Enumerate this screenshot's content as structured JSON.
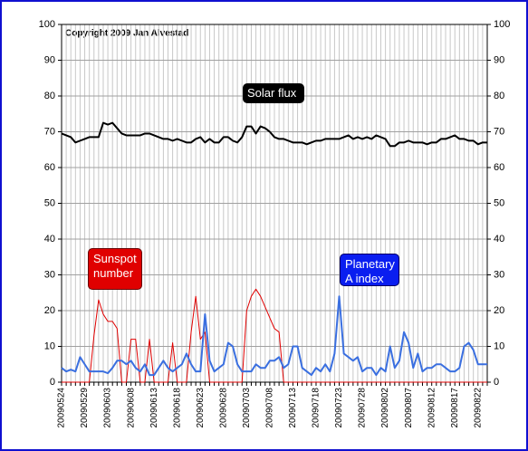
{
  "chart_data": {
    "type": "line",
    "annotations": {
      "copyright": "Copyright 2009 Jan Alvestad"
    },
    "categories": [
      "20090524",
      null,
      null,
      null,
      null,
      "20090529",
      null,
      null,
      null,
      null,
      "20090603",
      null,
      null,
      null,
      null,
      "20090608",
      null,
      null,
      null,
      null,
      "20090613",
      null,
      null,
      null,
      null,
      "20090618",
      null,
      null,
      null,
      null,
      "20090623",
      null,
      null,
      null,
      null,
      "20090628",
      null,
      null,
      null,
      null,
      "20090703",
      null,
      null,
      null,
      null,
      "20090708",
      null,
      null,
      null,
      null,
      "20090713",
      null,
      null,
      null,
      null,
      "20090718",
      null,
      null,
      null,
      null,
      "20090723",
      null,
      null,
      null,
      null,
      "20090728",
      null,
      null,
      null,
      null,
      "20090802",
      null,
      null,
      null,
      null,
      "20090807",
      null,
      null,
      null,
      null,
      "20090812",
      null,
      null,
      null,
      null,
      "20090817",
      null,
      null,
      null,
      null,
      "20090822",
      null,
      null
    ],
    "series": [
      {
        "name": "Solar flux",
        "color": "#000000",
        "values": [
          69.5,
          69,
          68.5,
          67,
          67.5,
          68,
          68.5,
          68.5,
          68.5,
          72.5,
          72,
          72.5,
          71,
          69.5,
          69,
          69,
          69,
          69,
          69.5,
          69.5,
          69,
          68.5,
          68,
          68,
          67.5,
          68,
          67.5,
          67,
          67,
          68,
          68.5,
          67,
          68,
          67,
          67,
          68.5,
          68.5,
          67.5,
          67,
          68.5,
          71.5,
          71.5,
          69.5,
          71.5,
          71,
          70,
          68.5,
          68,
          68,
          67.5,
          67,
          67,
          67,
          66.5,
          67,
          67.5,
          67.5,
          68,
          68,
          68,
          68,
          68.5,
          69,
          68,
          68.5,
          68,
          68.5,
          68,
          69,
          68.5,
          68,
          66,
          66,
          67,
          67,
          67.5,
          67,
          67,
          67,
          66.5,
          67,
          67,
          68,
          68,
          68.5,
          69,
          68,
          68,
          67.5,
          67.5,
          66.5,
          67,
          67
        ]
      },
      {
        "name": "Sunspot number",
        "color": "#e00000",
        "values": [
          0,
          0,
          0,
          0,
          0,
          0,
          0,
          13,
          23,
          19,
          17,
          17,
          15,
          0,
          0,
          12,
          12,
          0,
          0,
          12,
          0,
          0,
          0,
          0,
          11,
          0,
          0,
          0,
          14,
          24,
          12,
          14,
          0,
          0,
          0,
          0,
          0,
          0,
          0,
          0,
          20,
          24,
          26,
          24,
          21,
          18,
          15,
          14,
          0,
          0,
          0,
          0,
          0,
          0,
          0,
          0,
          0,
          0,
          0,
          0,
          0,
          0,
          0,
          0,
          0,
          0,
          0,
          0,
          0,
          0,
          0,
          0,
          0,
          0,
          0,
          0,
          0,
          0,
          0,
          0,
          0,
          0,
          0,
          0,
          0,
          0,
          0,
          0,
          0,
          0,
          0,
          0,
          0
        ]
      },
      {
        "name": "Planetary A index",
        "color": "#3a6fe0",
        "values": [
          4,
          3,
          3.5,
          3,
          7,
          5,
          3,
          3,
          3,
          3,
          2.5,
          4,
          6,
          6,
          5,
          6,
          4,
          3,
          5,
          2,
          2,
          4,
          6,
          4,
          3,
          4,
          5,
          8,
          5,
          3,
          3,
          19,
          6,
          3,
          4,
          5,
          11,
          10,
          5,
          3,
          3,
          3,
          5,
          4,
          4,
          6,
          6,
          7,
          4,
          5,
          10,
          10,
          4,
          3,
          2,
          4,
          3,
          5,
          3,
          8,
          24,
          8,
          7,
          6,
          7,
          3,
          4,
          4,
          2,
          4,
          3,
          10,
          4,
          6,
          14,
          11,
          4,
          8,
          3,
          4,
          4,
          5,
          5,
          4,
          3,
          3,
          4,
          10,
          11,
          9,
          5,
          5,
          5
        ]
      }
    ],
    "ylim": [
      0,
      100
    ],
    "yticks": [
      0,
      10,
      20,
      30,
      40,
      50,
      60,
      70,
      80,
      90,
      100
    ],
    "grid": true
  }
}
